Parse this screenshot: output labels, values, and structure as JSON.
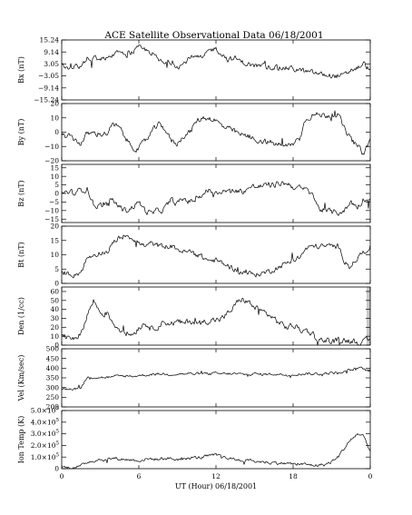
{
  "chart_data": {
    "type": "line",
    "title": "ACE Satellite Observational Data   06/18/2001",
    "xlabel": "UT (Hour)   06/18/2001",
    "x_ticks": [
      "0",
      "6",
      "12",
      "18",
      "0"
    ],
    "x_tick_values": [
      0,
      6,
      12,
      18,
      24
    ],
    "xlim": [
      0,
      24
    ],
    "panels": [
      {
        "name": "Bx (nT)",
        "ylabel": "Bx (nT)",
        "ylim": [
          -15.24,
          15.24
        ],
        "y_ticks": [
          15.24,
          9.14,
          3.05,
          -3.05,
          -9.14,
          -15.24
        ],
        "y_tick_labels": [
          "15.24",
          "9.14",
          "3.05",
          "−3.05",
          "−9.14",
          "−15.24"
        ],
        "noise": 1.2,
        "series": {
          "x": [
            0,
            0.5,
            1,
            1.5,
            2,
            2.5,
            3,
            3.5,
            4,
            4.5,
            5,
            5.5,
            6,
            6.5,
            7,
            7.5,
            8,
            8.5,
            9,
            9.5,
            10,
            10.5,
            11,
            11.5,
            12,
            12.5,
            13,
            13.5,
            14,
            14.5,
            15,
            15.5,
            16,
            16.5,
            17,
            17.5,
            18,
            18.5,
            19,
            19.5,
            20,
            20.5,
            21,
            21.5,
            22,
            22.5,
            23,
            23.5,
            24
          ],
          "y": [
            2,
            1,
            2,
            1.5,
            6,
            6,
            6,
            6,
            8,
            10,
            8,
            9,
            11,
            10,
            9,
            5,
            3,
            4,
            2,
            3,
            7,
            6,
            6,
            10,
            11,
            8,
            5,
            6,
            4,
            3,
            2,
            2,
            1.5,
            1.5,
            1,
            1,
            0.5,
            0,
            -1,
            -1.5,
            -2,
            -2.5,
            -3,
            -3,
            -3,
            0,
            1,
            3,
            0
          ]
        }
      },
      {
        "name": "By (nT)",
        "ylabel": "By (nT)",
        "ylim": [
          -20,
          20
        ],
        "y_ticks": [
          20,
          10,
          0,
          -10,
          -20
        ],
        "y_tick_labels": [
          "20",
          "10",
          "0",
          "−10",
          "−20"
        ],
        "noise": 1.8,
        "series": {
          "x": [
            0,
            0.5,
            1,
            1.5,
            2,
            2.5,
            3,
            3.5,
            4,
            4.5,
            5,
            5.5,
            6,
            6.5,
            7,
            7.5,
            8,
            8.5,
            9,
            9.5,
            10,
            10.5,
            11,
            11.5,
            12,
            12.5,
            13,
            13.5,
            14,
            14.5,
            15,
            15.5,
            16,
            16.5,
            17,
            17.5,
            18,
            18.5,
            19,
            19.5,
            20,
            20.5,
            21,
            21.5,
            22,
            22.5,
            23,
            23.5,
            24
          ],
          "y": [
            -2,
            -3,
            -5,
            -8,
            -1,
            -1,
            -1,
            -1,
            5,
            3,
            -5,
            -10,
            -12,
            -6,
            0,
            5,
            3,
            -6,
            -8,
            -2,
            0,
            8,
            10,
            10,
            8,
            4,
            2,
            0,
            -2,
            -3,
            -5,
            -6,
            -7,
            -8,
            -9,
            -10,
            -8,
            -4,
            10,
            12,
            12,
            12,
            12,
            12,
            2,
            -5,
            -10,
            -15,
            -5
          ]
        }
      },
      {
        "name": "Bz (nT)",
        "ylabel": "Bz (nT)",
        "ylim": [
          -17,
          17
        ],
        "y_ticks": [
          15,
          10,
          5,
          0,
          -5,
          -10,
          -15
        ],
        "y_tick_labels": [
          "15",
          "10",
          "5",
          "0",
          "−5",
          "−10",
          "−15"
        ],
        "noise": 1.5,
        "series": {
          "x": [
            0,
            0.5,
            1,
            1.5,
            2,
            2.5,
            3,
            3.5,
            4,
            4.5,
            5,
            5.5,
            6,
            6.5,
            7,
            7.5,
            8,
            8.5,
            9,
            9.5,
            10,
            10.5,
            11,
            11.5,
            12,
            12.5,
            13,
            13.5,
            14,
            14.5,
            15,
            15.5,
            16,
            16.5,
            17,
            17.5,
            18,
            18.5,
            19,
            19.5,
            20,
            20.5,
            21,
            21.5,
            22,
            22.5,
            23,
            23.5,
            24
          ],
          "y": [
            0,
            1,
            0,
            2,
            3,
            -7,
            -7,
            -7,
            -4,
            -8,
            -10,
            -8,
            -5,
            -10,
            -12,
            -10,
            -9,
            -4,
            -6,
            -3,
            -5,
            -3,
            0,
            2,
            0,
            2,
            1,
            2,
            1,
            3,
            4,
            4,
            5,
            5,
            6,
            6,
            4,
            3,
            2,
            0,
            -9,
            -10,
            -11,
            -11,
            -10,
            -5,
            -8,
            -3,
            -5
          ]
        }
      },
      {
        "name": "Bt (nT)",
        "ylabel": "Bt (nT)",
        "ylim": [
          0,
          20
        ],
        "y_ticks": [
          20,
          15,
          10,
          5,
          0
        ],
        "y_tick_labels": [
          "20",
          "15",
          "10",
          "5",
          "0"
        ],
        "noise": 0.8,
        "series": {
          "x": [
            0,
            0.5,
            1,
            1.5,
            2,
            2.5,
            3,
            3.5,
            4,
            4.5,
            5,
            5.5,
            6,
            6.5,
            7,
            7.5,
            8,
            8.5,
            9,
            9.5,
            10,
            10.5,
            11,
            11.5,
            12,
            12.5,
            13,
            13.5,
            14,
            14.5,
            15,
            15.5,
            16,
            16.5,
            17,
            17.5,
            18,
            18.5,
            19,
            19.5,
            20,
            20.5,
            21,
            21.5,
            22,
            22.5,
            23,
            23.5,
            24
          ],
          "y": [
            4,
            3.5,
            3,
            4,
            9,
            10,
            11,
            11,
            14,
            16,
            17,
            16,
            14,
            13,
            14,
            13,
            13,
            13,
            12,
            11,
            11,
            10,
            9,
            8,
            8,
            7,
            6,
            5,
            4,
            3.5,
            3,
            3.5,
            4,
            5,
            6,
            7,
            8,
            9,
            12,
            13,
            13,
            13,
            13,
            13,
            8,
            6,
            9,
            11,
            13
          ]
        }
      },
      {
        "name": "Den (1/cc)",
        "ylabel": "Den (1/cc)",
        "ylim": [
          0,
          65
        ],
        "y_ticks": [
          60,
          50,
          40,
          30,
          20,
          10,
          0
        ],
        "y_tick_labels": [
          "60",
          "50",
          "40",
          "30",
          "20",
          "10",
          "0"
        ],
        "noise": 3,
        "shaded_tail": true,
        "series": {
          "x": [
            0,
            0.5,
            1,
            1.5,
            2,
            2.5,
            3,
            3.5,
            4,
            4.5,
            5,
            5.5,
            6,
            6.5,
            7,
            7.5,
            8,
            8.5,
            9,
            9.5,
            10,
            10.5,
            11,
            11.5,
            12,
            12.5,
            13,
            13.5,
            14,
            14.5,
            15,
            15.5,
            16,
            16.5,
            17,
            17.5,
            18,
            18.5,
            19,
            19.5,
            20,
            20.5,
            21,
            21.5,
            22,
            22.5,
            23,
            23.5,
            24
          ],
          "y": [
            8,
            10,
            9,
            12,
            35,
            50,
            36,
            36,
            25,
            18,
            14,
            12,
            20,
            25,
            18,
            22,
            26,
            24,
            26,
            24,
            27,
            25,
            26,
            28,
            28,
            30,
            36,
            45,
            52,
            48,
            42,
            38,
            35,
            30,
            24,
            20,
            22,
            18,
            16,
            14,
            5,
            6,
            4,
            5,
            6,
            5,
            4,
            3,
            5
          ]
        }
      },
      {
        "name": "Vel (Km/sec)",
        "ylabel": "Vel (Km/sec)",
        "ylim": [
          200,
          500
        ],
        "y_ticks": [
          500,
          450,
          400,
          350,
          300,
          250,
          200
        ],
        "y_tick_labels": [
          "500",
          "450",
          "400",
          "350",
          "300",
          "250",
          "200"
        ],
        "noise": 6,
        "series": {
          "x": [
            0,
            0.5,
            1,
            1.5,
            2,
            2.5,
            3,
            3.5,
            4,
            4.5,
            5,
            5.5,
            6,
            6.5,
            7,
            7.5,
            8,
            8.5,
            9,
            9.5,
            10,
            10.5,
            11,
            11.5,
            12,
            12.5,
            13,
            13.5,
            14,
            14.5,
            15,
            15.5,
            16,
            16.5,
            17,
            17.5,
            18,
            18.5,
            19,
            19.5,
            20,
            20.5,
            21,
            21.5,
            22,
            22.5,
            23,
            23.5,
            24
          ],
          "y": [
            295,
            293,
            295,
            300,
            350,
            352,
            352,
            352,
            355,
            358,
            360,
            358,
            362,
            365,
            368,
            370,
            370,
            368,
            372,
            370,
            372,
            370,
            372,
            370,
            372,
            370,
            372,
            370,
            368,
            368,
            370,
            368,
            368,
            370,
            368,
            366,
            368,
            370,
            372,
            370,
            370,
            372,
            375,
            378,
            382,
            390,
            400,
            395,
            380
          ]
        }
      },
      {
        "name": "Ion Temp (K)",
        "ylabel": "Ion Temp (K)",
        "ylim": [
          0,
          500000
        ],
        "y_ticks": [
          500000,
          400000,
          300000,
          200000,
          100000,
          0
        ],
        "y_tick_mantissa": [
          "5.0",
          "4.0",
          "3.0",
          "2.0",
          "1.0",
          "0"
        ],
        "y_tick_exponent": "5",
        "noise": 12000,
        "series": {
          "x": [
            0,
            0.5,
            1,
            1.5,
            2,
            2.5,
            3,
            3.5,
            4,
            4.5,
            5,
            5.5,
            6,
            6.5,
            7,
            7.5,
            8,
            8.5,
            9,
            9.5,
            10,
            10.5,
            11,
            11.5,
            12,
            12.5,
            13,
            13.5,
            14,
            14.5,
            15,
            15.5,
            16,
            16.5,
            17,
            17.5,
            18,
            18.5,
            19,
            19.5,
            20,
            20.5,
            21,
            21.5,
            22,
            22.5,
            23,
            23.5,
            24
          ],
          "y": [
            10000,
            12000,
            15000,
            20000,
            60000,
            70000,
            80000,
            75000,
            90000,
            85000,
            80000,
            75000,
            70000,
            80000,
            85000,
            80000,
            90000,
            85000,
            80000,
            85000,
            90000,
            95000,
            100000,
            110000,
            115000,
            100000,
            90000,
            80000,
            75000,
            70000,
            65000,
            60000,
            55000,
            50000,
            50000,
            45000,
            40000,
            40000,
            35000,
            30000,
            30000,
            35000,
            60000,
            100000,
            180000,
            250000,
            300000,
            280000,
            150000
          ]
        }
      }
    ]
  }
}
